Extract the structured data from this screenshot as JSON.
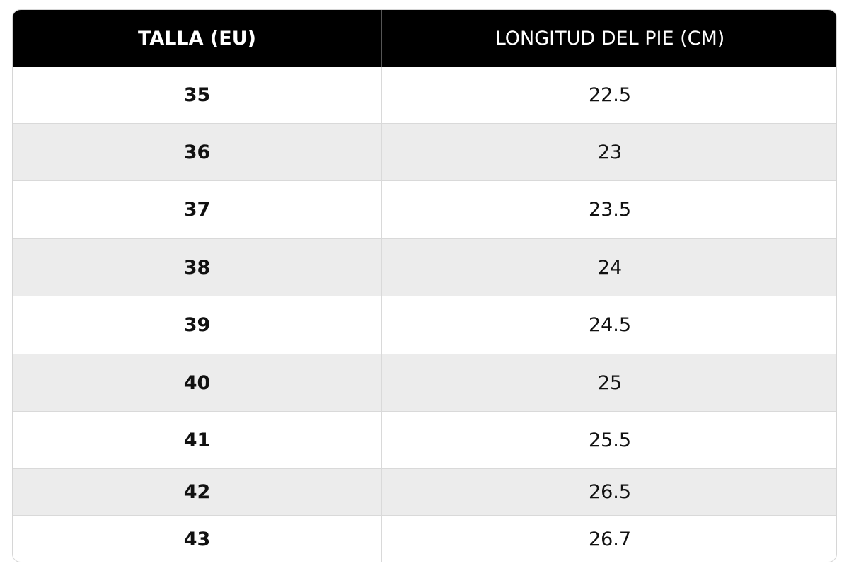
{
  "table": {
    "header": [
      "TALLA (EU)",
      "LONGITUD DEL PIE (CM)"
    ],
    "rows": [
      [
        "35",
        "22.5"
      ],
      [
        "36",
        "23"
      ],
      [
        "37",
        "23.5"
      ],
      [
        "38",
        "24"
      ],
      [
        "39",
        "24.5"
      ],
      [
        "40",
        "25"
      ],
      [
        "41",
        "25.5"
      ],
      [
        "42",
        "26.5"
      ],
      [
        "43",
        "26.7"
      ]
    ]
  }
}
